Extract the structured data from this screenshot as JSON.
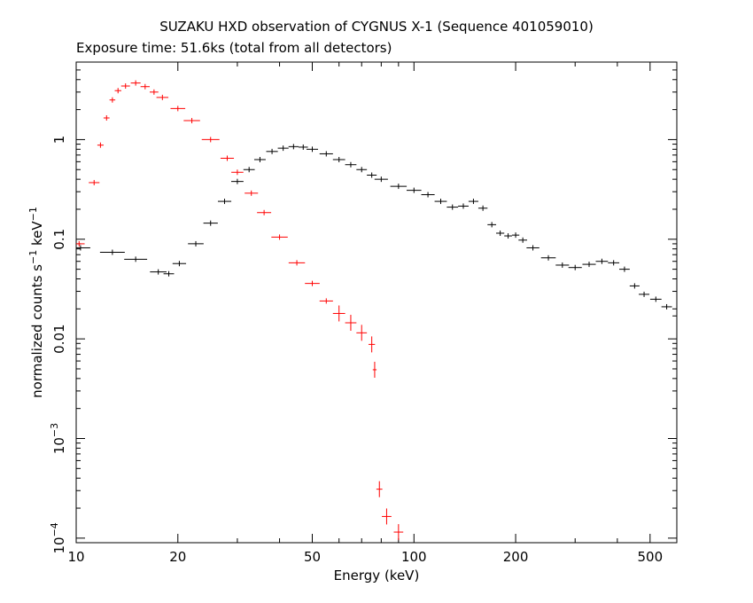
{
  "chart_data": {
    "type": "scatter",
    "title": "SUZAKU HXD observation of CYGNUS X-1 (Sequence 401059010)",
    "subtitle": "Exposure time: 51.6ks (total from all detectors)",
    "xlabel": "Energy (keV)",
    "ylabel": {
      "main": "normalized counts s",
      "exp1": "−1",
      "mid": " keV",
      "exp2": "−1"
    },
    "xscale": "log",
    "yscale": "log",
    "xlim": [
      10,
      600
    ],
    "ylim": [
      9e-05,
      6
    ],
    "grid": false,
    "legend": "none",
    "x_ticks": [
      {
        "value": 10,
        "label": "10"
      },
      {
        "value": 20,
        "label": "20"
      },
      {
        "value": 50,
        "label": "50"
      },
      {
        "value": 100,
        "label": "100"
      },
      {
        "value": 200,
        "label": "200"
      },
      {
        "value": 500,
        "label": "500"
      }
    ],
    "y_ticks": [
      {
        "value": 0.0001,
        "base": "10",
        "exp": "−4"
      },
      {
        "value": 0.001,
        "base": "10",
        "exp": "−3"
      },
      {
        "value": 0.01,
        "label": "0.01"
      },
      {
        "value": 0.1,
        "label": "0.1"
      },
      {
        "value": 1,
        "label": "1"
      }
    ],
    "series": [
      {
        "color": "#ff0000",
        "x": [
          10.2,
          11.3,
          11.8,
          12.3,
          12.8,
          13.3,
          14.0,
          15,
          16,
          17,
          18,
          20,
          22,
          25,
          28,
          30,
          33,
          36,
          40,
          45,
          50,
          55,
          60,
          65,
          70,
          75,
          76.5,
          79,
          83,
          90
        ],
        "y": [
          0.09,
          0.37,
          0.88,
          1.65,
          2.5,
          3.1,
          3.45,
          3.7,
          3.4,
          3.0,
          2.65,
          2.05,
          1.55,
          1.0,
          0.65,
          0.47,
          0.29,
          0.185,
          0.105,
          0.058,
          0.036,
          0.024,
          0.018,
          0.0145,
          0.0115,
          0.0088,
          0.0049,
          0.00031,
          0.000165,
          0.000115
        ]
      },
      {
        "color": "#000000",
        "x": [
          10.3,
          12.8,
          15,
          17.5,
          18.8,
          20.2,
          22.6,
          25,
          27.5,
          30,
          32.5,
          35,
          38,
          41,
          44,
          47,
          50,
          55,
          60,
          65,
          70,
          75,
          80,
          90,
          100,
          110,
          120,
          130,
          140,
          150,
          160,
          170,
          180,
          190,
          200,
          210,
          225,
          250,
          275,
          300,
          330,
          360,
          390,
          420,
          450,
          480,
          520,
          560,
          600
        ],
        "y": [
          0.082,
          0.074,
          0.063,
          0.047,
          0.045,
          0.057,
          0.09,
          0.145,
          0.24,
          0.38,
          0.5,
          0.63,
          0.76,
          0.82,
          0.85,
          0.84,
          0.8,
          0.72,
          0.63,
          0.56,
          0.5,
          0.44,
          0.4,
          0.34,
          0.31,
          0.28,
          0.24,
          0.21,
          0.215,
          0.24,
          0.205,
          0.14,
          0.115,
          0.108,
          0.11,
          0.098,
          0.082,
          0.065,
          0.055,
          0.052,
          0.056,
          0.06,
          0.058,
          0.05,
          0.034,
          0.028,
          0.025,
          0.021,
          0.017
        ]
      }
    ]
  }
}
